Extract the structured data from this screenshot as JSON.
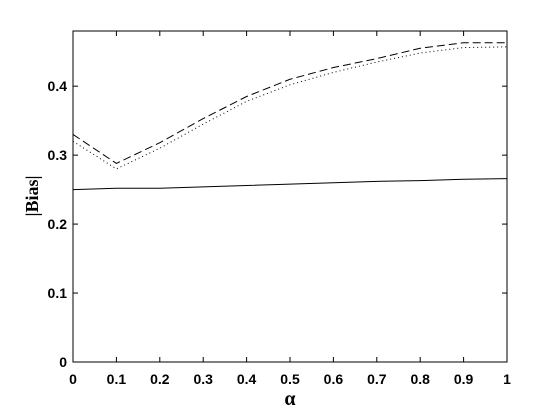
{
  "chart_data": {
    "type": "line",
    "x_label": "α",
    "y_label": "|Bias|",
    "x": [
      0,
      0.1,
      0.2,
      0.3,
      0.4,
      0.5,
      0.6,
      0.7,
      0.8,
      0.9,
      1
    ],
    "series": [
      {
        "color": "#000000",
        "dash": "8,4",
        "values": [
          0.33,
          0.288,
          0.318,
          0.353,
          0.385,
          0.41,
          0.427,
          0.44,
          0.455,
          0.463,
          0.463
        ]
      },
      {
        "color": "#000000",
        "dash": "1,3",
        "values": [
          0.32,
          0.28,
          0.31,
          0.345,
          0.378,
          0.402,
          0.42,
          0.435,
          0.448,
          0.456,
          0.457
        ]
      },
      {
        "color": "#000000",
        "dash": "none",
        "values": [
          0.25,
          0.252,
          0.252,
          0.254,
          0.256,
          0.258,
          0.26,
          0.262,
          0.263,
          0.265,
          0.266
        ]
      }
    ],
    "xlim": [
      0,
      1
    ],
    "xticks": [
      0,
      0.1,
      0.2,
      0.3,
      0.4,
      0.5,
      0.6,
      0.7,
      0.8,
      0.9,
      1
    ],
    "ylim": [
      0,
      0.48
    ],
    "yticks": [
      0,
      0.1,
      0.2,
      0.3,
      0.4
    ],
    "grid": false
  }
}
